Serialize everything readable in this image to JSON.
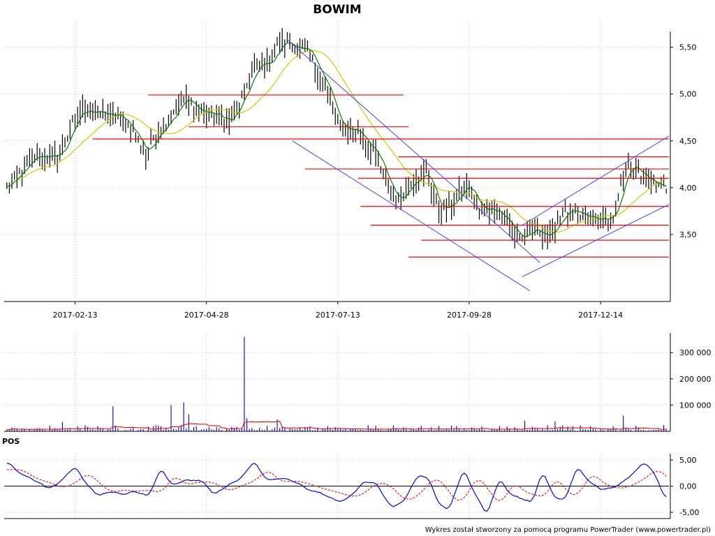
{
  "chart_data": [
    {
      "type": "candlestick",
      "title": "BOWIM",
      "xlabel": "",
      "ylabel": "",
      "date_ticks": [
        "2017-02-13",
        "2017-04-28",
        "2017-07-13",
        "2017-09-28",
        "2017-12-14"
      ],
      "date_tick_index": [
        27,
        79,
        131,
        183,
        235
      ],
      "n_bars": 262,
      "y_ticks": [
        3.5,
        4.0,
        4.5,
        5.0,
        5.5
      ],
      "y_tick_labels": [
        "3,50",
        "4,00",
        "4,50",
        "5,00",
        "5,50"
      ],
      "ylim": [
        2.8,
        5.78
      ],
      "grid": true,
      "close_path": [
        [
          0,
          4.0
        ],
        [
          6,
          4.18
        ],
        [
          12,
          4.35
        ],
        [
          20,
          4.32
        ],
        [
          25,
          4.62
        ],
        [
          30,
          4.85
        ],
        [
          38,
          4.78
        ],
        [
          45,
          4.75
        ],
        [
          50,
          4.6
        ],
        [
          55,
          4.35
        ],
        [
          58,
          4.55
        ],
        [
          64,
          4.75
        ],
        [
          70,
          4.95
        ],
        [
          76,
          4.82
        ],
        [
          82,
          4.78
        ],
        [
          88,
          4.7
        ],
        [
          93,
          4.95
        ],
        [
          98,
          5.28
        ],
        [
          104,
          5.35
        ],
        [
          108,
          5.55
        ],
        [
          114,
          5.52
        ],
        [
          120,
          5.4
        ],
        [
          126,
          5.1
        ],
        [
          131,
          4.65
        ],
        [
          138,
          4.62
        ],
        [
          145,
          4.4
        ],
        [
          150,
          4.05
        ],
        [
          155,
          3.85
        ],
        [
          160,
          4.1
        ],
        [
          166,
          4.15
        ],
        [
          171,
          3.75
        ],
        [
          177,
          3.85
        ],
        [
          182,
          4.05
        ],
        [
          187,
          3.75
        ],
        [
          193,
          3.8
        ],
        [
          200,
          3.55
        ],
        [
          204,
          3.45
        ],
        [
          209,
          3.55
        ],
        [
          215,
          3.48
        ],
        [
          220,
          3.75
        ],
        [
          226,
          3.7
        ],
        [
          234,
          3.65
        ],
        [
          240,
          3.7
        ],
        [
          246,
          4.28
        ],
        [
          252,
          4.1
        ],
        [
          258,
          4.0
        ],
        [
          261,
          4.0
        ]
      ],
      "horizontal_levels": [
        {
          "value": 4.99,
          "from_index": 56,
          "to_index": 157
        },
        {
          "value": 4.65,
          "from_index": 72,
          "to_index": 159
        },
        {
          "value": 4.52,
          "from_index": 34,
          "to_index": 262
        },
        {
          "value": 4.33,
          "from_index": 155,
          "to_index": 262
        },
        {
          "value": 4.2,
          "from_index": 118,
          "to_index": 262
        },
        {
          "value": 4.1,
          "from_index": 139,
          "to_index": 262
        },
        {
          "value": 3.8,
          "from_index": 140,
          "to_index": 262
        },
        {
          "value": 3.6,
          "from_index": 144,
          "to_index": 262
        },
        {
          "value": 3.44,
          "from_index": 164,
          "to_index": 262
        },
        {
          "value": 3.26,
          "from_index": 159,
          "to_index": 262
        }
      ],
      "trend_lines": [
        {
          "from": [
            111,
            5.58
          ],
          "to": [
            211,
            3.2
          ]
        },
        {
          "from": [
            113,
            4.5
          ],
          "to": [
            207,
            2.9
          ]
        },
        {
          "from": [
            204,
            3.05
          ],
          "to": [
            262,
            3.82
          ]
        },
        {
          "from": [
            204,
            3.6
          ],
          "to": [
            262,
            4.55
          ]
        }
      ],
      "colors": {
        "candles": "#000000",
        "fast_ma": "#008000",
        "slow_ma": "#d4c700",
        "levels": "#ff0000",
        "trend": "#4040ff",
        "grid": "#cccccc"
      }
    },
    {
      "type": "bar",
      "title": "",
      "y_ticks": [
        100000,
        200000,
        300000
      ],
      "y_tick_labels": [
        "100 000",
        "200 000",
        "300 000"
      ],
      "ylim": [
        0,
        375000
      ],
      "spikes": [
        [
          22,
          35000
        ],
        [
          42,
          95000
        ],
        [
          65,
          100000
        ],
        [
          70,
          110000
        ],
        [
          72,
          65000
        ],
        [
          94,
          360000
        ],
        [
          95,
          50000
        ],
        [
          107,
          45000
        ],
        [
          205,
          40000
        ],
        [
          217,
          38000
        ],
        [
          244,
          60000
        ]
      ],
      "average_level": 18000,
      "colors": {
        "bars": "#0000cc",
        "average": "#ff0000"
      }
    },
    {
      "type": "line",
      "title": "POS",
      "y_ticks": [
        -5.0,
        0.0,
        5.0
      ],
      "y_tick_labels": [
        "-5,00",
        "0,00",
        "5,00"
      ],
      "ylim": [
        -6.2,
        6.2
      ],
      "oscillator_points": [
        [
          0,
          4.5
        ],
        [
          5,
          2.0
        ],
        [
          10,
          1.2
        ],
        [
          15,
          -0.5
        ],
        [
          20,
          0.5
        ],
        [
          26,
          3.8
        ],
        [
          30,
          0.8
        ],
        [
          35,
          -1.8
        ],
        [
          40,
          -1.0
        ],
        [
          45,
          -1.5
        ],
        [
          50,
          -1.0
        ],
        [
          55,
          -2.0
        ],
        [
          60,
          3.5
        ],
        [
          64,
          0.2
        ],
        [
          70,
          1.2
        ],
        [
          76,
          1.0
        ],
        [
          81,
          -1.5
        ],
        [
          88,
          0.5
        ],
        [
          92,
          1.5
        ],
        [
          97,
          4.8
        ],
        [
          102,
          1.0
        ],
        [
          108,
          1.5
        ],
        [
          114,
          0.5
        ],
        [
          119,
          -0.8
        ],
        [
          124,
          -1.5
        ],
        [
          128,
          -2.5
        ],
        [
          132,
          -3.0
        ],
        [
          136,
          -1.5
        ],
        [
          140,
          1.0
        ],
        [
          145,
          0.5
        ],
        [
          151,
          -4.0
        ],
        [
          156,
          -3.0
        ],
        [
          162,
          2.0
        ],
        [
          166,
          1.5
        ],
        [
          170,
          -3.5
        ],
        [
          174,
          -4.5
        ],
        [
          180,
          3.2
        ],
        [
          184,
          -1.0
        ],
        [
          189,
          -5.5
        ],
        [
          194,
          1.5
        ],
        [
          198,
          -1.5
        ],
        [
          203,
          -2.5
        ],
        [
          207,
          -3.0
        ],
        [
          211,
          3.0
        ],
        [
          216,
          -2.5
        ],
        [
          220,
          -2.5
        ],
        [
          225,
          4.0
        ],
        [
          229,
          1.0
        ],
        [
          234,
          -0.5
        ],
        [
          239,
          -0.5
        ],
        [
          246,
          2.0
        ],
        [
          251,
          4.8
        ],
        [
          256,
          2.0
        ],
        [
          259,
          -2.0
        ],
        [
          261,
          -2.0
        ]
      ],
      "signal_shift": 4,
      "colors": {
        "oscillator": "#0000ff",
        "signal": "#ff0000",
        "zero_line": "#000000"
      }
    }
  ],
  "footer": {
    "text": "Wykres został stworzony za pomocą programu PowerTrader (www.powertrader.pl)"
  }
}
